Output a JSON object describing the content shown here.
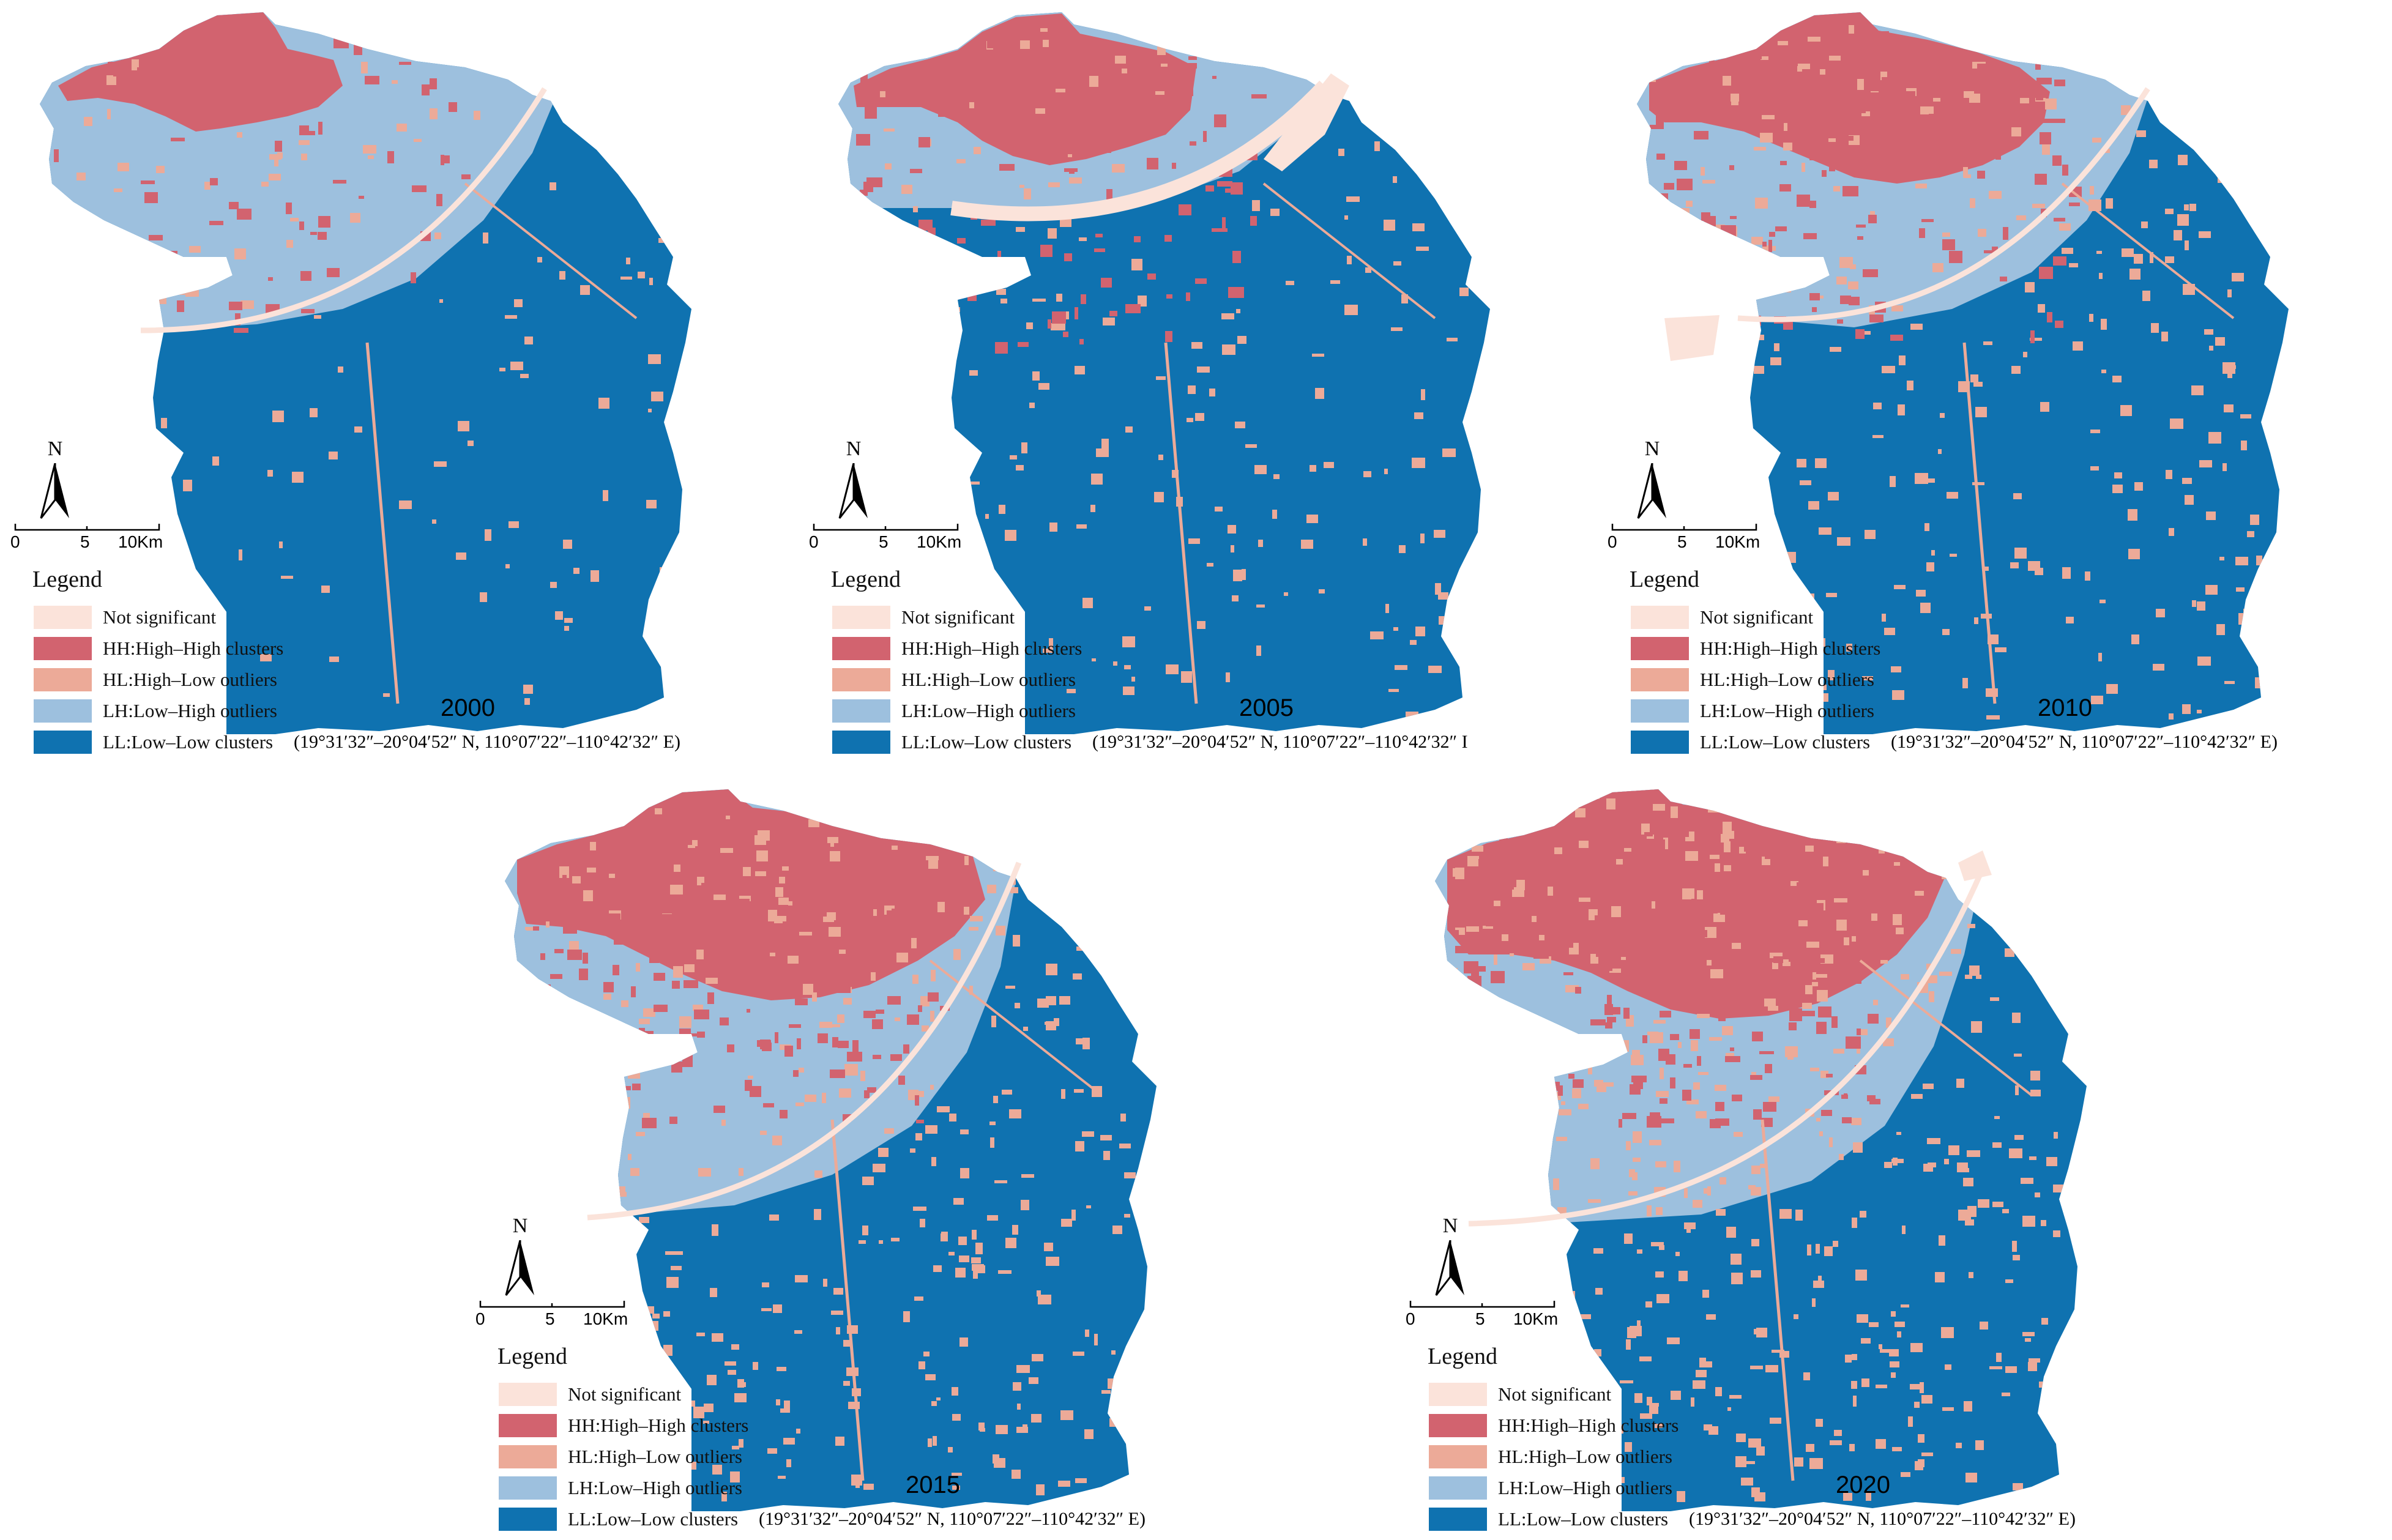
{
  "panels": [
    {
      "year": "2000",
      "coords": "(19°31′32″–20°04′52″ N, 110°07′22″–110°42′32″ E)",
      "variant": 0
    },
    {
      "year": "2005",
      "coords": "(19°31′32″–20°04′52″ N, 110°07′22″–110°42′32″ I",
      "variant": 1
    },
    {
      "year": "2010",
      "coords": "(19°31′32″–20°04′52″ N, 110°07′22″–110°42′32″ E)",
      "variant": 2
    },
    {
      "year": "2015",
      "coords": "(19°31′32″–20°04′52″ N, 110°07′22″–110°42′32″ E)",
      "variant": 3
    },
    {
      "year": "2020",
      "coords": "(19°31′32″–20°04′52″ N, 110°07′22″–110°42′32″ E)",
      "variant": 4
    }
  ],
  "north_label": "N",
  "scale": {
    "zero": "0",
    "mid": "5",
    "end": "10Km"
  },
  "legend": {
    "title": "Legend",
    "items": [
      {
        "label": "Not significant",
        "color": "#fbe3da"
      },
      {
        "label": "HH:High–High clusters",
        "color": "#d2636f"
      },
      {
        "label": "HL:High–Low outliers",
        "color": "#ecaa98"
      },
      {
        "label": "LH:Low–High outliers",
        "color": "#9dc0de"
      },
      {
        "label": "LL:Low–Low clusters",
        "color": "#0f72b0"
      }
    ]
  }
}
